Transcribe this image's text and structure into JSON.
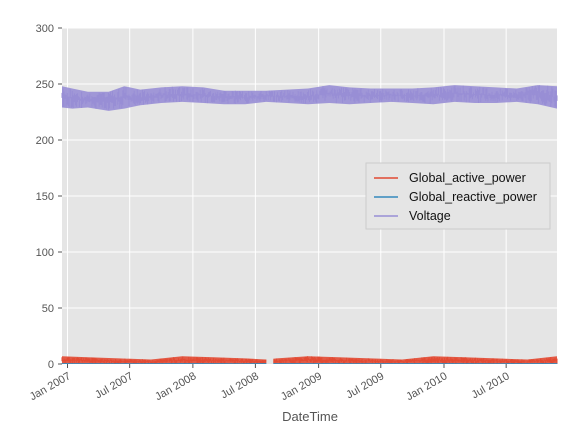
{
  "chart_data": {
    "type": "line",
    "xlabel": "DateTime",
    "ylabel": "",
    "x_range": [
      "2006-12-16",
      "2010-11-26"
    ],
    "ylim": [
      0,
      300
    ],
    "y_ticks": [
      0,
      50,
      100,
      150,
      200,
      250,
      300
    ],
    "x_ticks": [
      {
        "date": "2007-01-01",
        "label": "Jan 2007"
      },
      {
        "date": "2007-07-01",
        "label": "Jul 2007"
      },
      {
        "date": "2008-01-01",
        "label": "Jan 2008"
      },
      {
        "date": "2008-07-01",
        "label": "Jul 2008"
      },
      {
        "date": "2009-01-01",
        "label": "Jan 2009"
      },
      {
        "date": "2009-07-01",
        "label": "Jul 2009"
      },
      {
        "date": "2010-01-01",
        "label": "Jan 2010"
      },
      {
        "date": "2010-07-01",
        "label": "Jul 2010"
      }
    ],
    "grid": true,
    "legend_position": "center-right",
    "series": [
      {
        "name": "Global_active_power",
        "color": "#E24A33",
        "x": [
          "2006-12-16",
          "2007-03-01",
          "2007-06-01",
          "2007-09-01",
          "2007-12-01",
          "2008-03-01",
          "2008-06-01",
          "2008-08-01",
          "2008-09-01",
          "2008-12-01",
          "2009-03-01",
          "2009-06-01",
          "2009-09-01",
          "2009-12-01",
          "2010-03-01",
          "2010-06-01",
          "2010-09-01",
          "2010-11-26"
        ],
        "low": [
          0.2,
          0.1,
          0.1,
          0.1,
          0.2,
          0.1,
          0.1,
          0.1,
          0.1,
          0.2,
          0.1,
          0.1,
          0.1,
          0.2,
          0.1,
          0.1,
          0.1,
          0.2
        ],
        "high": [
          7,
          6,
          5,
          4,
          7,
          6,
          5,
          4,
          5,
          7,
          6,
          5,
          4,
          7,
          6,
          5,
          4,
          7
        ]
      },
      {
        "name": "Global_reactive_power",
        "color": "#348ABD",
        "x": [
          "2006-12-16",
          "2007-06-01",
          "2007-12-01",
          "2008-06-01",
          "2008-12-01",
          "2009-06-01",
          "2009-12-01",
          "2010-06-01",
          "2010-11-26"
        ],
        "low": [
          0,
          0,
          0,
          0,
          0,
          0,
          0,
          0,
          0
        ],
        "high": [
          0.8,
          0.7,
          0.8,
          0.7,
          0.8,
          0.7,
          0.8,
          0.7,
          0.8
        ]
      },
      {
        "name": "Voltage",
        "color": "#988ED5",
        "x": [
          "2006-12-16",
          "2007-01-15",
          "2007-03-01",
          "2007-05-01",
          "2007-06-15",
          "2007-08-01",
          "2007-10-01",
          "2007-12-01",
          "2008-02-01",
          "2008-04-01",
          "2008-06-01",
          "2008-08-01",
          "2008-10-01",
          "2008-12-01",
          "2009-02-01",
          "2009-04-01",
          "2009-06-01",
          "2009-08-01",
          "2009-10-01",
          "2009-12-01",
          "2010-02-01",
          "2010-04-01",
          "2010-06-01",
          "2010-08-01",
          "2010-10-01",
          "2010-11-26"
        ],
        "low": [
          229,
          228,
          229,
          226,
          228,
          231,
          233,
          234,
          233,
          232,
          232,
          234,
          233,
          232,
          233,
          232,
          233,
          234,
          233,
          232,
          234,
          233,
          233,
          234,
          232,
          228
        ],
        "high": [
          248,
          246,
          243,
          243,
          248,
          245,
          247,
          248,
          247,
          244,
          244,
          244,
          245,
          246,
          249,
          247,
          246,
          246,
          246,
          247,
          249,
          248,
          247,
          246,
          249,
          248
        ]
      }
    ]
  }
}
